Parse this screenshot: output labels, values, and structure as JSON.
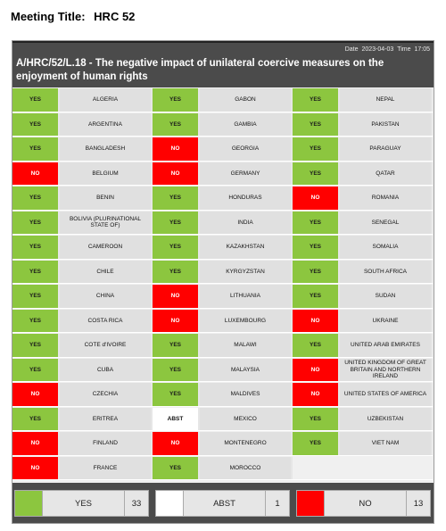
{
  "meeting": {
    "label": "Meeting Title:",
    "value": "HRC 52"
  },
  "header": {
    "date_label": "Date",
    "date": "2023-04-03",
    "time_label": "Time",
    "time": "17:05",
    "title": "A/HRC/52/L.18 - The negative impact of unilateral coercive measures on the enjoyment of human rights"
  },
  "colors": {
    "yes": "#8cc63f",
    "no": "#ff0000",
    "abst": "#ffffff",
    "header": "#4b4b4b"
  },
  "votes": [
    {
      "country": "ALGERIA",
      "vote": "YES"
    },
    {
      "country": "GABON",
      "vote": "YES"
    },
    {
      "country": "NEPAL",
      "vote": "YES"
    },
    {
      "country": "ARGENTINA",
      "vote": "YES"
    },
    {
      "country": "GAMBIA",
      "vote": "YES"
    },
    {
      "country": "PAKISTAN",
      "vote": "YES"
    },
    {
      "country": "BANGLADESH",
      "vote": "YES"
    },
    {
      "country": "GEORGIA",
      "vote": "NO"
    },
    {
      "country": "PARAGUAY",
      "vote": "YES"
    },
    {
      "country": "BELGIUM",
      "vote": "NO"
    },
    {
      "country": "GERMANY",
      "vote": "NO"
    },
    {
      "country": "QATAR",
      "vote": "YES"
    },
    {
      "country": "BENIN",
      "vote": "YES"
    },
    {
      "country": "HONDURAS",
      "vote": "YES"
    },
    {
      "country": "ROMANIA",
      "vote": "NO"
    },
    {
      "country": "BOLIVIA (PLURINATIONAL STATE OF)",
      "vote": "YES"
    },
    {
      "country": "INDIA",
      "vote": "YES"
    },
    {
      "country": "SENEGAL",
      "vote": "YES"
    },
    {
      "country": "CAMEROON",
      "vote": "YES"
    },
    {
      "country": "KAZAKHSTAN",
      "vote": "YES"
    },
    {
      "country": "SOMALIA",
      "vote": "YES"
    },
    {
      "country": "CHILE",
      "vote": "YES"
    },
    {
      "country": "KYRGYZSTAN",
      "vote": "YES"
    },
    {
      "country": "SOUTH AFRICA",
      "vote": "YES"
    },
    {
      "country": "CHINA",
      "vote": "YES"
    },
    {
      "country": "LITHUANIA",
      "vote": "NO"
    },
    {
      "country": "SUDAN",
      "vote": "YES"
    },
    {
      "country": "COSTA RICA",
      "vote": "YES"
    },
    {
      "country": "LUXEMBOURG",
      "vote": "NO"
    },
    {
      "country": "UKRAINE",
      "vote": "NO"
    },
    {
      "country": "COTE d'IVOIRE",
      "vote": "YES"
    },
    {
      "country": "MALAWI",
      "vote": "YES"
    },
    {
      "country": "UNITED ARAB EMIRATES",
      "vote": "YES"
    },
    {
      "country": "CUBA",
      "vote": "YES"
    },
    {
      "country": "MALAYSIA",
      "vote": "YES"
    },
    {
      "country": "UNITED KINGDOM OF GREAT BRITAIN AND NORTHERN IRELAND",
      "vote": "NO"
    },
    {
      "country": "CZECHIA",
      "vote": "NO"
    },
    {
      "country": "MALDIVES",
      "vote": "YES"
    },
    {
      "country": "UNITED STATES OF AMERICA",
      "vote": "NO"
    },
    {
      "country": "ERITREA",
      "vote": "YES"
    },
    {
      "country": "MEXICO",
      "vote": "ABST"
    },
    {
      "country": "UZBEKISTAN",
      "vote": "YES"
    },
    {
      "country": "FINLAND",
      "vote": "NO"
    },
    {
      "country": "MONTENEGRO",
      "vote": "NO"
    },
    {
      "country": "VIET NAM",
      "vote": "YES"
    },
    {
      "country": "FRANCE",
      "vote": "NO"
    },
    {
      "country": "MOROCCO",
      "vote": "YES"
    }
  ],
  "summary": [
    {
      "label": "YES",
      "count": "33",
      "color": "#8cc63f"
    },
    {
      "label": "ABST",
      "count": "1",
      "color": "#ffffff"
    },
    {
      "label": "NO",
      "count": "13",
      "color": "#ff0000"
    }
  ]
}
